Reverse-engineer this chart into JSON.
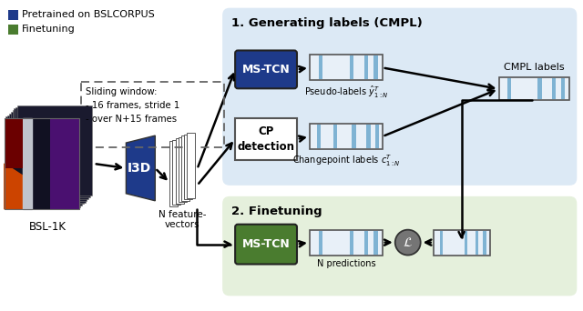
{
  "bg_color": "#ffffff",
  "blue_color": "#1e3a8a",
  "green_color": "#4a7c2f",
  "light_blue_bg": "#dce9f5",
  "light_green_bg": "#e5f0dc",
  "bar_fill": "#e8f0f8",
  "bar_stripe": "#7fb3d3",
  "legend_blue": "#1e3a8a",
  "legend_green": "#4a7c2f",
  "legend_text1": "Pretrained on BSLCORPUS",
  "legend_text2": "Finetuning",
  "section1_title": "1. Generating labels (CMPL)",
  "section2_title": "2. Finetuning",
  "mstcn_label": "MS-TCN",
  "cp_label": "CP\ndetection",
  "i3d_label": "I3D",
  "bsl_label": "BSL-1K",
  "n_feat_label": "N feature-\nvectors",
  "pseudo_label": "Pseudo-labels $\\hat{y}_{1:N}^T$",
  "cp_labels_text": "Changepoint labels $c_{1:N}^T$",
  "cmpl_label": "CMPL labels",
  "n_pred_label": "N predictions",
  "sliding_window_text": "Sliding window:\n- 16 frames, stride 1\n- over N+15 frames"
}
